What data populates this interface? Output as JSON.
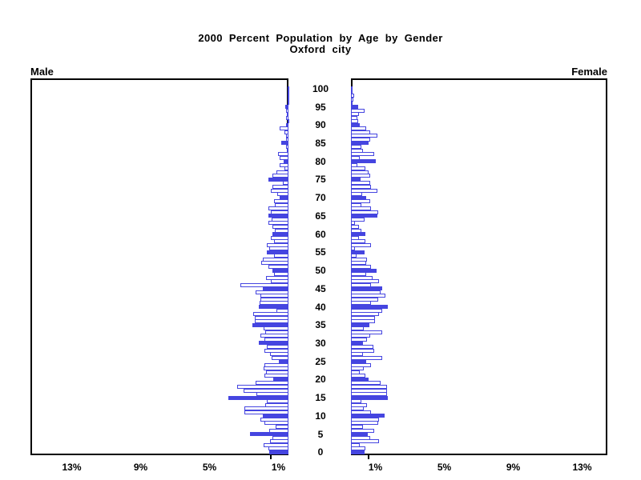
{
  "title": {
    "line1": "2000 Percent Population by Age by Gender",
    "line2": "Oxford city"
  },
  "panels": {
    "left_label": "Male",
    "right_label": "Female"
  },
  "axis": {
    "age_tick_labels": [
      "100",
      "95",
      "90",
      "85",
      "80",
      "75",
      "70",
      "65",
      "60",
      "55",
      "50",
      "45",
      "40",
      "35",
      "30",
      "25",
      "20",
      "15",
      "10",
      "5",
      "0"
    ],
    "male_pct_labels": [
      "13%",
      "9%",
      "5%",
      "1%"
    ],
    "female_pct_labels": [
      "1%",
      "5%",
      "9%",
      "13%"
    ]
  },
  "colors": {
    "bar_blue": "#4545e0",
    "panel_border": "#000000",
    "background": "#ffffff"
  },
  "chart_data": {
    "type": "bar",
    "subtype": "population-pyramid",
    "title": "2000 Percent Population by Age by Gender",
    "subtitle": "Oxford city",
    "orientation": "horizontal",
    "age_min": 0,
    "age_max": 100,
    "age_step": 1,
    "highlight_every": 5,
    "x_axis": {
      "unit": "percent",
      "ticks": [
        1,
        5,
        9,
        13
      ],
      "max": 15
    },
    "y_axis": {
      "label": "age",
      "ticks": [
        0,
        5,
        10,
        15,
        20,
        25,
        30,
        35,
        40,
        45,
        50,
        55,
        60,
        65,
        70,
        75,
        80,
        85,
        90,
        95,
        100
      ]
    },
    "series": [
      {
        "name": "Male",
        "side": "left",
        "values": [
          1.12,
          1.16,
          1.43,
          1.05,
          0.93,
          2.22,
          1.12,
          0.74,
          1.4,
          1.63,
          1.47,
          2.55,
          2.55,
          1.36,
          1.24,
          3.49,
          1.86,
          2.6,
          2.98,
          1.89,
          0.9,
          1.4,
          1.32,
          1.43,
          1.4,
          0.54,
          0.96,
          1.05,
          1.4,
          1.27,
          1.71,
          1.4,
          1.63,
          1.36,
          1.42,
          2.09,
          1.94,
          1.97,
          2.05,
          0.7,
          1.71,
          1.67,
          1.63,
          1.63,
          1.89,
          1.47,
          2.79,
          1.01,
          1.32,
          0.85,
          0.93,
          1.16,
          1.58,
          1.47,
          0.85,
          1.24,
          1.12,
          1.24,
          0.85,
          1.01,
          0.93,
          0.78,
          0.93,
          1.16,
          0.96,
          1.16,
          1.01,
          1.16,
          0.78,
          0.85,
          0.51,
          0.65,
          1.01,
          0.93,
          0.34,
          1.16,
          0.93,
          0.7,
          0.25,
          0.5,
          0.3,
          0.5,
          0.6,
          0.1,
          0.15,
          0.4,
          0.15,
          0.15,
          0.25,
          0.5,
          0.15,
          0.05,
          0.15,
          0.1,
          0.15,
          0.2,
          0.05,
          0.03,
          0.03,
          0.02,
          0.02
        ]
      },
      {
        "name": "Female",
        "side": "right",
        "values": [
          0.79,
          0.84,
          0.53,
          1.61,
          1.1,
          0.99,
          1.36,
          0.68,
          1.57,
          1.61,
          1.95,
          1.15,
          0.74,
          0.95,
          0.6,
          2.14,
          2.11,
          2.11,
          2.11,
          1.72,
          1.02,
          0.84,
          0.53,
          0.74,
          1.18,
          0.87,
          1.83,
          0.68,
          1.36,
          1.3,
          0.71,
          0.95,
          1.1,
          1.8,
          0.74,
          1.05,
          1.41,
          1.41,
          1.64,
          1.8,
          2.14,
          1.15,
          1.57,
          1.98,
          1.72,
          1.8,
          1.15,
          1.64,
          1.26,
          0.87,
          1.49,
          1.15,
          0.9,
          0.95,
          0.33,
          0.79,
          0.22,
          1.15,
          0.84,
          0.48,
          0.84,
          0.59,
          0.48,
          0.22,
          0.79,
          1.52,
          1.57,
          1.18,
          0.59,
          1.12,
          0.87,
          0.64,
          1.52,
          1.18,
          1.1,
          0.55,
          1.1,
          1.02,
          0.84,
          0.37,
          1.46,
          0.53,
          1.36,
          0.71,
          0.6,
          1.02,
          1.1,
          1.52,
          1.1,
          0.87,
          0.53,
          0.41,
          0.37,
          0.48,
          0.79,
          0.43,
          0.1,
          0.15,
          0.19,
          0.05,
          0.02
        ]
      }
    ]
  }
}
